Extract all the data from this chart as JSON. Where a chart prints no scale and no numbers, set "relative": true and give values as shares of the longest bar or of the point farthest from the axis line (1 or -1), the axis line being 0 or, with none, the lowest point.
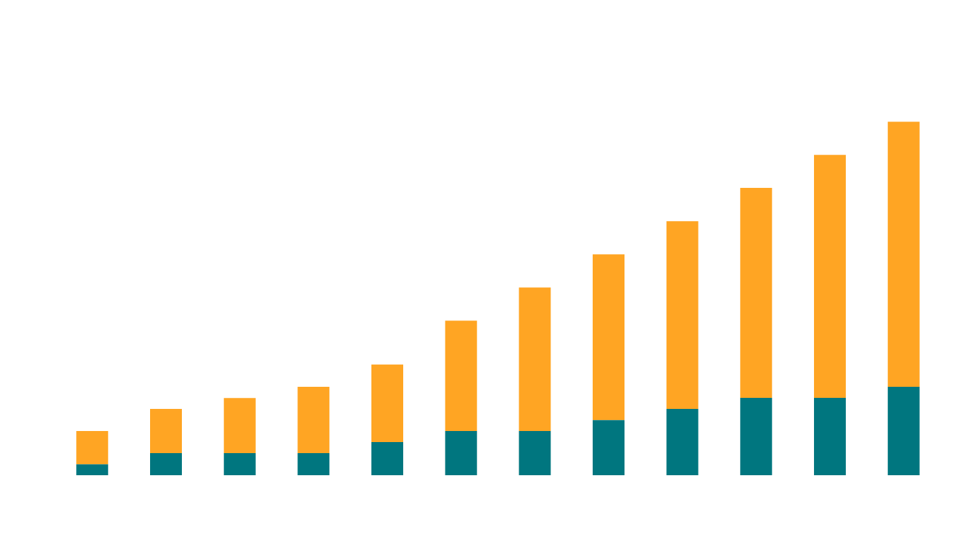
{
  "chart_data": {
    "type": "bar",
    "stacked": true,
    "relative": true,
    "categories": [
      null,
      null,
      null,
      null,
      null,
      null,
      null,
      null,
      null,
      null,
      null,
      null
    ],
    "series": [
      {
        "color": "#00767f",
        "values": [
          0.031,
          0.0625,
          0.0625,
          0.0625,
          0.094,
          0.125,
          0.125,
          0.156,
          0.1875,
          0.219,
          0.219,
          0.25
        ]
      },
      {
        "color": "#ffa523",
        "values": [
          0.094,
          0.125,
          0.156,
          0.1875,
          0.219,
          0.3125,
          0.406,
          0.469,
          0.531,
          0.594,
          0.6875,
          0.75
        ]
      }
    ]
  }
}
